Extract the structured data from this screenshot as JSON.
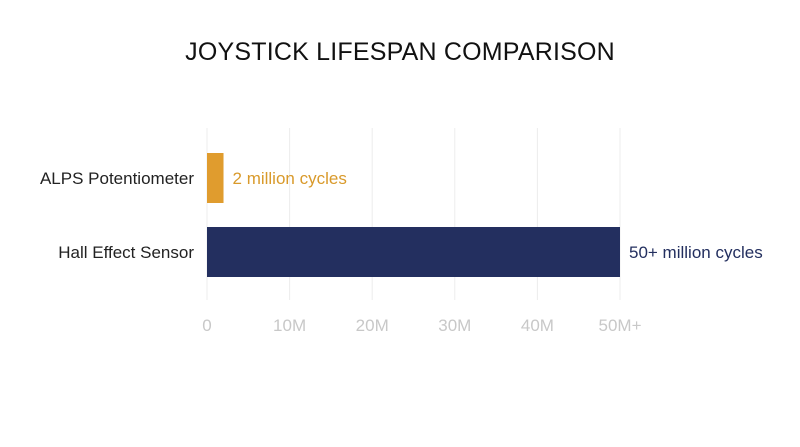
{
  "chart_data": {
    "type": "bar",
    "orientation": "horizontal",
    "title": "JOYSTICK LIFESPAN COMPARISON",
    "xlabel": "",
    "ylabel": "",
    "categories": [
      "ALPS Potentiometer",
      "Hall Effect Sensor"
    ],
    "values": [
      2,
      50
    ],
    "units": "million cycles",
    "data_labels": [
      "2 million cycles",
      "50+ million cycles"
    ],
    "colors": [
      "#e09c2e",
      "#232f5f"
    ],
    "label_colors": [
      "#d99a2b",
      "#232f5f"
    ],
    "xlim": [
      0,
      50
    ],
    "x_ticks": [
      0,
      10,
      20,
      30,
      40,
      50
    ],
    "x_tick_labels": [
      "0",
      "10M",
      "20M",
      "30M",
      "40M",
      "50M+"
    ],
    "grid": true,
    "legend": "none"
  }
}
